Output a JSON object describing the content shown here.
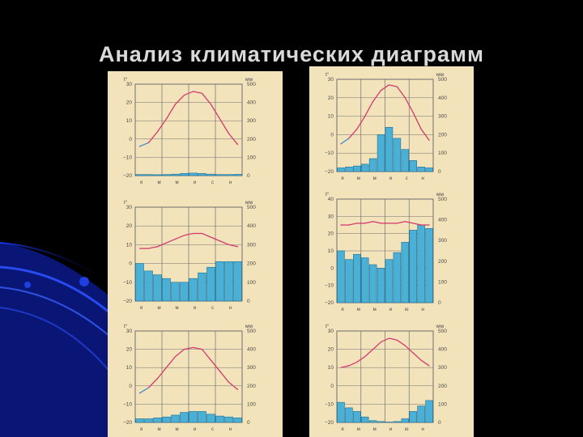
{
  "slide": {
    "title": "Анализ климатических диаграмм"
  },
  "colors": {
    "background": "#000000",
    "swoosh": "#1a3cff",
    "title": "#d9d9d9",
    "paper": "#f3e3bb",
    "grid": "#6f6f6f",
    "temperature_line": "#d23a6e",
    "temperature_line_cold": "#3f8fd0",
    "precip_bar": "#4bb0d6",
    "precip_bar_edge": "#1f6e94"
  },
  "icons": [
    "decorative-blue-swoosh"
  ],
  "chart_data": [
    {
      "id": "d1",
      "type": "bar+line",
      "t_unit": "t°",
      "p_unit": "мм",
      "t_ticks": [
        "30",
        "20",
        "10",
        "0",
        "−10",
        "−20"
      ],
      "p_ticks": [
        "500",
        "400",
        "300",
        "200",
        "100",
        "0"
      ],
      "ylim_t": [
        -20,
        30
      ],
      "ylim_p": [
        0,
        500
      ],
      "months": [
        "я",
        "м",
        "м",
        "и",
        "с",
        "н"
      ],
      "temperature": [
        -4,
        -2,
        4,
        11,
        19,
        24,
        26,
        25,
        19,
        11,
        3,
        -3
      ],
      "precipitation": [
        6,
        6,
        5,
        6,
        8,
        12,
        14,
        12,
        8,
        6,
        6,
        7
      ],
      "cold_months": [
        0,
        1,
        11
      ]
    },
    {
      "id": "d2",
      "type": "bar+line",
      "t_unit": "t°",
      "p_unit": "мм",
      "t_ticks": [
        "30",
        "20",
        "10",
        "0",
        "−10",
        "−20"
      ],
      "p_ticks": [
        "500",
        "400",
        "300",
        "200",
        "100",
        "0"
      ],
      "ylim_t": [
        -20,
        30
      ],
      "ylim_p": [
        0,
        500
      ],
      "months": [
        "я",
        "м",
        "м",
        "и",
        "с",
        "н"
      ],
      "temperature": [
        -5,
        -2,
        3,
        10,
        18,
        24,
        27,
        26,
        20,
        12,
        3,
        -3
      ],
      "precipitation": [
        20,
        25,
        30,
        40,
        70,
        200,
        240,
        180,
        120,
        60,
        25,
        20
      ],
      "cold_months": [
        0,
        1,
        11
      ]
    },
    {
      "id": "d3",
      "type": "bar+line",
      "t_unit": "t°",
      "p_unit": "мм",
      "t_ticks": [
        "30",
        "20",
        "10",
        "0",
        "−10",
        "−20"
      ],
      "p_ticks": [
        "500",
        "400",
        "300",
        "200",
        "100",
        "0"
      ],
      "ylim_t": [
        -20,
        30
      ],
      "ylim_p": [
        0,
        500
      ],
      "months": [
        "я",
        "м",
        "м",
        "и",
        "с",
        "н"
      ],
      "temperature": [
        8,
        8,
        9,
        11,
        13,
        15,
        16,
        16,
        14,
        12,
        10,
        9
      ],
      "precipitation": [
        200,
        160,
        140,
        120,
        100,
        100,
        120,
        150,
        180,
        210,
        210,
        210
      ],
      "cold_months": []
    },
    {
      "id": "d4",
      "type": "bar+line",
      "t_unit": "t°",
      "p_unit": "мм",
      "t_ticks": [
        "40",
        "30",
        "20",
        "10",
        "0",
        "−10",
        "−20"
      ],
      "p_ticks": [
        "500",
        "400",
        "300",
        "200",
        "100",
        "0"
      ],
      "ylim_t": [
        -20,
        40
      ],
      "ylim_p": [
        0,
        600
      ],
      "months": [
        "я",
        "м",
        "м",
        "и",
        "ю",
        "н"
      ],
      "temperature": [
        25,
        25,
        26,
        26,
        27,
        26,
        26,
        26,
        27,
        26,
        25,
        25
      ],
      "precipitation": [
        300,
        250,
        280,
        260,
        220,
        200,
        250,
        290,
        350,
        420,
        450,
        430
      ],
      "cold_months": []
    },
    {
      "id": "d5",
      "type": "bar+line",
      "t_unit": "t°",
      "p_unit": "мм",
      "t_ticks": [
        "30",
        "20",
        "10",
        "0",
        "−10",
        "−20"
      ],
      "p_ticks": [
        "500",
        "400",
        "300",
        "200",
        "100",
        "0"
      ],
      "ylim_t": [
        -20,
        30
      ],
      "ylim_p": [
        0,
        500
      ],
      "months": [
        "я",
        "м",
        "м",
        "и",
        "с",
        "н"
      ],
      "temperature": [
        -4,
        -1,
        4,
        10,
        16,
        20,
        21,
        20,
        14,
        8,
        2,
        -2
      ],
      "precipitation": [
        20,
        20,
        25,
        30,
        40,
        55,
        60,
        60,
        45,
        35,
        30,
        25
      ],
      "cold_months": [
        0,
        1,
        11
      ]
    },
    {
      "id": "d6",
      "type": "bar+line",
      "t_unit": "t°",
      "p_unit": "мм",
      "t_ticks": [
        "30",
        "20",
        "10",
        "0",
        "−10",
        "−20"
      ],
      "p_ticks": [
        "500",
        "400",
        "300",
        "200",
        "100",
        "0"
      ],
      "ylim_t": [
        -20,
        30
      ],
      "ylim_p": [
        0,
        500
      ],
      "months": [
        "я",
        "м",
        "м",
        "и",
        "ю",
        "н"
      ],
      "temperature": [
        10,
        11,
        13,
        16,
        20,
        24,
        26,
        25,
        22,
        18,
        14,
        11
      ],
      "precipitation": [
        110,
        80,
        60,
        30,
        10,
        5,
        2,
        5,
        20,
        60,
        90,
        120
      ],
      "cold_months": []
    }
  ]
}
